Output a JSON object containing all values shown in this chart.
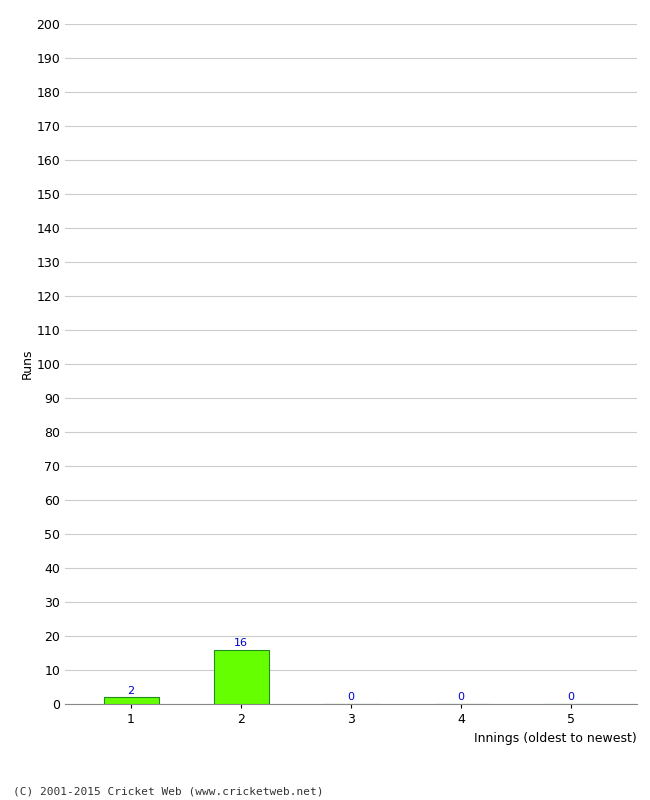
{
  "xlabel": "Innings (oldest to newest)",
  "ylabel": "Runs",
  "categories": [
    1,
    2,
    3,
    4,
    5
  ],
  "values": [
    2,
    16,
    0,
    0,
    0
  ],
  "bar_color": "#66ff00",
  "bar_edge_color": "#228B22",
  "label_color": "#0000cc",
  "ylim": [
    0,
    200
  ],
  "ytick_step": 10,
  "background_color": "#ffffff",
  "grid_color": "#cccccc",
  "footer": "(C) 2001-2015 Cricket Web (www.cricketweb.net)"
}
